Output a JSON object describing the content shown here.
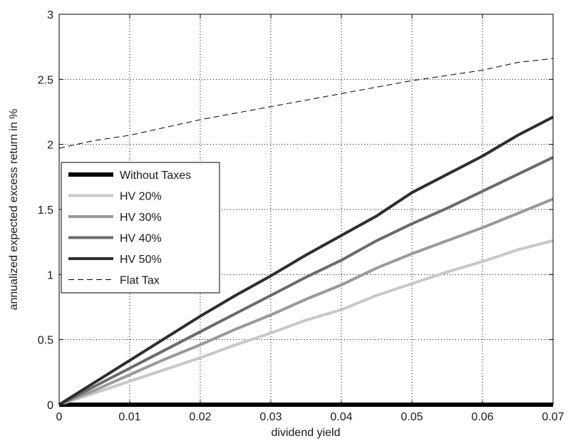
{
  "chart_data": {
    "type": "line",
    "title": "",
    "xlabel": "dividend yield",
    "ylabel": "annualized expected excess return in %",
    "xlim": [
      0,
      0.07
    ],
    "ylim": [
      0,
      3
    ],
    "xticks": [
      "0",
      "0.01",
      "0.02",
      "0.03",
      "0.04",
      "0.05",
      "0.06",
      "0.07"
    ],
    "yticks": [
      "0",
      "0.5",
      "1",
      "1.5",
      "2",
      "2.5",
      "3"
    ],
    "grid": true,
    "legend_position": "middle-left",
    "series": [
      {
        "name": "Without Taxes",
        "color": "#000000",
        "style": "solid",
        "x": [
          0,
          0.07
        ],
        "y": [
          0,
          0
        ]
      },
      {
        "name": "HV 20%",
        "color": "#c8c8c8",
        "style": "solid",
        "x": [
          0,
          0.005,
          0.01,
          0.015,
          0.02,
          0.025,
          0.03,
          0.035,
          0.04,
          0.045,
          0.05,
          0.055,
          0.06,
          0.065,
          0.07
        ],
        "y": [
          0,
          0.09,
          0.18,
          0.27,
          0.36,
          0.46,
          0.55,
          0.65,
          0.73,
          0.84,
          0.93,
          1.02,
          1.1,
          1.19,
          1.26
        ]
      },
      {
        "name": "HV 30%",
        "color": "#9a9a9a",
        "style": "solid",
        "x": [
          0,
          0.005,
          0.01,
          0.015,
          0.02,
          0.025,
          0.03,
          0.035,
          0.04,
          0.045,
          0.05,
          0.055,
          0.06,
          0.065,
          0.07
        ],
        "y": [
          0,
          0.11,
          0.23,
          0.35,
          0.46,
          0.58,
          0.69,
          0.81,
          0.92,
          1.05,
          1.16,
          1.26,
          1.36,
          1.47,
          1.58
        ]
      },
      {
        "name": "HV 40%",
        "color": "#6b6b6b",
        "style": "solid",
        "x": [
          0,
          0.005,
          0.01,
          0.015,
          0.02,
          0.025,
          0.03,
          0.035,
          0.04,
          0.045,
          0.05,
          0.055,
          0.06,
          0.065,
          0.07
        ],
        "y": [
          0,
          0.14,
          0.28,
          0.42,
          0.56,
          0.7,
          0.84,
          0.98,
          1.11,
          1.26,
          1.39,
          1.51,
          1.64,
          1.77,
          1.9
        ]
      },
      {
        "name": "HV 50%",
        "color": "#2e2e2e",
        "style": "solid",
        "x": [
          0,
          0.005,
          0.01,
          0.015,
          0.02,
          0.025,
          0.03,
          0.035,
          0.04,
          0.045,
          0.05,
          0.055,
          0.06,
          0.065,
          0.07
        ],
        "y": [
          0,
          0.17,
          0.34,
          0.51,
          0.68,
          0.84,
          0.99,
          1.15,
          1.3,
          1.45,
          1.63,
          1.77,
          1.91,
          2.07,
          2.21
        ]
      },
      {
        "name": "Flat Tax",
        "color": "#000000",
        "style": "dashed",
        "x": [
          0,
          0.005,
          0.01,
          0.015,
          0.02,
          0.025,
          0.03,
          0.035,
          0.04,
          0.045,
          0.05,
          0.055,
          0.06,
          0.065,
          0.07
        ],
        "y": [
          1.97,
          2.03,
          2.07,
          2.13,
          2.19,
          2.24,
          2.29,
          2.34,
          2.39,
          2.44,
          2.49,
          2.53,
          2.57,
          2.63,
          2.66
        ]
      }
    ]
  }
}
